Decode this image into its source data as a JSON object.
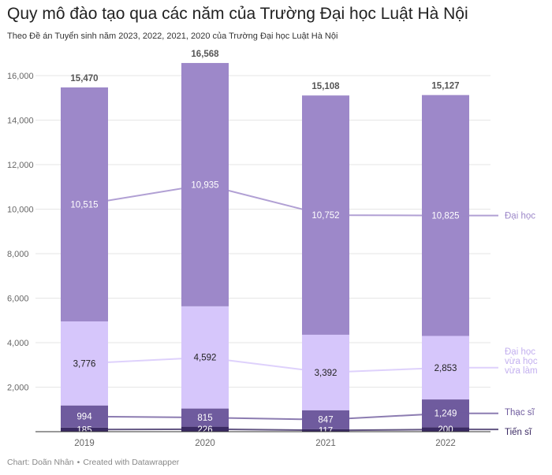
{
  "header": {
    "title": "Quy mô đào tạo qua các năm của Trường Đại học Luật Hà Nội",
    "subtitle": "Theo Đề án Tuyển sinh năm 2023, 2022, 2021, 2020 của Trường Đại học Luật Hà Nội"
  },
  "footer": {
    "credit": "Chart: Doãn Nhân",
    "created": "Created with Datawrapper",
    "separator": "•"
  },
  "chart_data": {
    "type": "bar",
    "stacked": true,
    "title": "Quy mô đào tạo qua các năm của Trường Đại học Luật Hà Nội",
    "subtitle": "Theo Đề án Tuyển sinh năm 2023, 2022, 2021, 2020 của Trường Đại học Luật Hà Nội",
    "xlabel": "",
    "ylabel": "",
    "ylim": [
      0,
      16000
    ],
    "yticks": [
      0,
      2000,
      4000,
      6000,
      8000,
      10000,
      12000,
      14000,
      16000
    ],
    "ytick_labels": [
      "",
      "2,000",
      "4,000",
      "6,000",
      "8,000",
      "10,000",
      "12,000",
      "14,000",
      "16,000"
    ],
    "grid": true,
    "categories": [
      "2019",
      "2020",
      "2021",
      "2022"
    ],
    "totals": [
      15470,
      16568,
      15108,
      15127
    ],
    "total_labels": [
      "15,470",
      "16,568",
      "15,108",
      "15,127"
    ],
    "series": [
      {
        "name": "Tiến sĩ",
        "legend": [
          "Tiến sĩ"
        ],
        "color": "#3b2a63",
        "label_color": "#ffffff",
        "values": [
          185,
          226,
          117,
          200
        ],
        "labels": [
          "185",
          "226",
          "117",
          "200"
        ]
      },
      {
        "name": "Thạc sĩ",
        "legend": [
          "Thạc sĩ"
        ],
        "color": "#6f5b9e",
        "label_color": "#ffffff",
        "values": [
          994,
          815,
          847,
          1249
        ],
        "labels": [
          "994",
          "815",
          "847",
          "1,249"
        ]
      },
      {
        "name": "Đại học vừa học vừa làm",
        "legend": [
          "Đại học",
          "vừa học",
          "vừa làm"
        ],
        "color": "#d6c6fb",
        "label_color": "#222222",
        "values": [
          3776,
          4592,
          3392,
          2853
        ],
        "labels": [
          "3,776",
          "4,592",
          "3,392",
          "2,853"
        ]
      },
      {
        "name": "Đại học",
        "legend": [
          "Đại học"
        ],
        "color": "#9d88c9",
        "label_color": "#ffffff",
        "values": [
          10515,
          10935,
          10752,
          10825
        ],
        "labels": [
          "10,515",
          "10,935",
          "10,752",
          "10,825"
        ]
      }
    ],
    "legend_placement": "right",
    "colors": {
      "grid": "#e6e6e6",
      "axis": "#333333",
      "tick_text": "#666666",
      "total_text": "#555555"
    }
  }
}
